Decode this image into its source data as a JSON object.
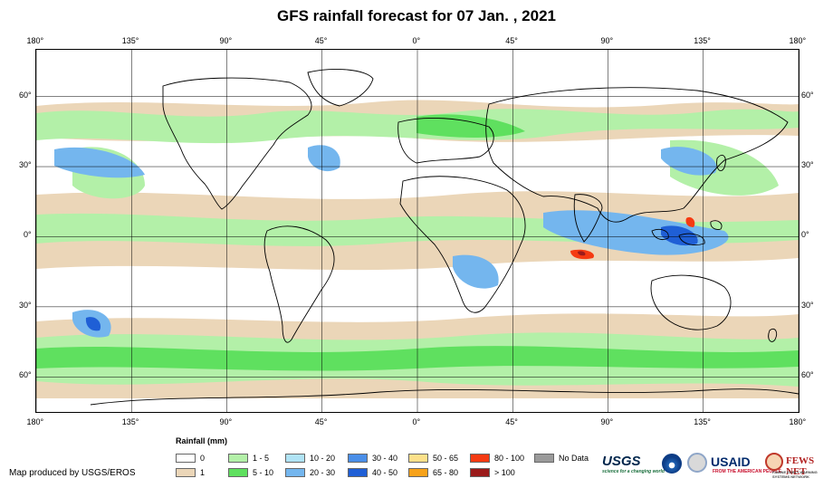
{
  "title": "GFS rainfall forecast for 07 Jan. , 2021",
  "map": {
    "projection": "equirectangular",
    "lon_range": [
      -180,
      180
    ],
    "lat_range": [
      -75,
      80
    ],
    "top_labels": [
      "180°",
      "135°",
      "90°",
      "45°",
      "0°",
      "45°",
      "90°",
      "135°",
      "180°"
    ],
    "bottom_labels": [
      "180°",
      "135°",
      "90°",
      "45°",
      "0°",
      "45°",
      "90°",
      "135°",
      "180°"
    ],
    "left_labels": [
      "60°",
      "30°",
      "0°",
      "30°",
      "60°"
    ],
    "right_labels": [
      "60°",
      "30°",
      "0°",
      "30°",
      "60°"
    ],
    "tick_lons": [
      -180,
      -135,
      -90,
      -45,
      0,
      45,
      90,
      135,
      180
    ],
    "tick_lats": [
      60,
      30,
      0,
      -30,
      -60
    ]
  },
  "legend": {
    "title": "Rainfall (mm)",
    "items": [
      {
        "label": "0",
        "color": "#ffffff"
      },
      {
        "label": "1",
        "color": "#ebd6b8"
      },
      {
        "label": "1 - 5",
        "color": "#b3f0a8"
      },
      {
        "label": "5 - 10",
        "color": "#5fe05f"
      },
      {
        "label": "10 - 20",
        "color": "#b0e3f5"
      },
      {
        "label": "20 - 30",
        "color": "#74b6ee"
      },
      {
        "label": "30 - 40",
        "color": "#4a8ee8"
      },
      {
        "label": "40 - 50",
        "color": "#1f5fd6"
      },
      {
        "label": "50 - 65",
        "color": "#fce08a"
      },
      {
        "label": "65 - 80",
        "color": "#f7a21a"
      },
      {
        "label": "80 - 100",
        "color": "#f53a12"
      },
      {
        "label": "> 100",
        "color": "#9b1b1b"
      },
      {
        "label": "No Data",
        "color": "#9a9a9a"
      }
    ]
  },
  "credit": "Map produced by USGS/EROS",
  "logos": {
    "usgs": "USGS",
    "usgs_tagline": "science for a changing world",
    "noaa": "noaa-logo",
    "seal": "usaid-seal",
    "usaid": "USAID",
    "usaid_tagline": "FROM THE AMERICAN PEOPLE",
    "fews": "FEWS NET",
    "fews_tagline": "FAMINE EARLY WARNING SYSTEMS NETWORK"
  }
}
